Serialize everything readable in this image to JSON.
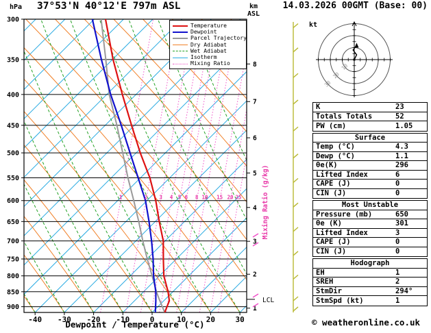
{
  "header": {
    "station": "37°53'N 40°12'E 797m ASL",
    "datetime": "14.03.2026 00GMT (Base: 00)"
  },
  "axes": {
    "pressure_unit": "hPa",
    "km_unit": "km",
    "asl_unit": "ASL",
    "xlabel": "Dewpoint / Temperature (°C)",
    "mixing_label": "Mixing Ratio (g/kg)",
    "lcl_label": "LCL"
  },
  "legend": {
    "items": [
      {
        "label": "Temperature",
        "color": "#dd1111",
        "style": "solid",
        "weight": 2
      },
      {
        "label": "Dewpoint",
        "color": "#1111cc",
        "style": "solid",
        "weight": 2
      },
      {
        "label": "Parcel Trajectory",
        "color": "#999999",
        "style": "solid",
        "weight": 2
      },
      {
        "label": "Dry Adiabat",
        "color": "#f08028",
        "style": "solid",
        "weight": 1
      },
      {
        "label": "Wet Adiabat",
        "color": "#22a022",
        "style": "dashed",
        "weight": 1
      },
      {
        "label": "Isotherm",
        "color": "#29abe2",
        "style": "solid",
        "weight": 1
      },
      {
        "label": "Mixing Ratio",
        "color": "#f050c8",
        "style": "dotted",
        "weight": 1
      }
    ]
  },
  "hodograph": {
    "unit": "kt",
    "rings": [
      10,
      20,
      30
    ],
    "trace": [
      [
        0,
        0
      ],
      [
        2,
        4
      ],
      [
        -1,
        8
      ],
      [
        2,
        12
      ]
    ]
  },
  "indices": {
    "sections": [
      {
        "rows": [
          {
            "label": "K",
            "value": "23"
          },
          {
            "label": "Totals Totals",
            "value": "52"
          },
          {
            "label": "PW (cm)",
            "value": "1.05"
          }
        ]
      },
      {
        "title": "Surface",
        "rows": [
          {
            "label": "Temp (°C)",
            "value": "4.3"
          },
          {
            "label": "Dewp (°C)",
            "value": "1.1"
          },
          {
            "label": "θe(K)",
            "value": "296"
          },
          {
            "label": "Lifted Index",
            "value": "6"
          },
          {
            "label": "CAPE (J)",
            "value": "0"
          },
          {
            "label": "CIN (J)",
            "value": "0"
          }
        ]
      },
      {
        "title": "Most Unstable",
        "rows": [
          {
            "label": "Pressure (mb)",
            "value": "650"
          },
          {
            "label": "θe (K)",
            "value": "301"
          },
          {
            "label": "Lifted Index",
            "value": "3"
          },
          {
            "label": "CAPE (J)",
            "value": "0"
          },
          {
            "label": "CIN (J)",
            "value": "0"
          }
        ]
      },
      {
        "title": "Hodograph",
        "rows": [
          {
            "label": "EH",
            "value": "1"
          },
          {
            "label": "SREH",
            "value": "2"
          },
          {
            "label": "StmDir",
            "value": "294°"
          },
          {
            "label": "StmSpd (kt)",
            "value": "1"
          }
        ]
      }
    ]
  },
  "footer": {
    "text": "© weatheronline.co.uk"
  },
  "chart_data": {
    "type": "skewt_sounding",
    "title": "37°53'N 40°12'E 797m ASL",
    "datetime": "14.03.2026 00GMT (Base: 00)",
    "pressure_axis": {
      "ticks": [
        300,
        350,
        400,
        450,
        500,
        550,
        600,
        650,
        700,
        750,
        800,
        850,
        900
      ],
      "top_p": 300,
      "bottom_p": 920
    },
    "temp_axis": {
      "ticks": [
        -40,
        -30,
        -20,
        -10,
        0,
        10,
        20,
        30
      ]
    },
    "km_axis": {
      "ticks": [
        {
          "km": 8,
          "p": 356
        },
        {
          "km": 7,
          "p": 411
        },
        {
          "km": 6,
          "p": 472
        },
        {
          "km": 5,
          "p": 540
        },
        {
          "km": 4,
          "p": 616
        },
        {
          "km": 3,
          "p": 701
        },
        {
          "km": 2,
          "p": 795
        },
        {
          "km": 1,
          "p": 905
        }
      ]
    },
    "mixing_ratio": {
      "values": [
        1,
        2,
        3,
        4,
        5,
        6,
        8,
        10,
        15,
        20,
        25
      ],
      "label_pressure": 600
    },
    "lcl_pressure": 875,
    "wind_barb_pressures": [
      310,
      340,
      375,
      415,
      460,
      510,
      560,
      615,
      675,
      740,
      810,
      880,
      915
    ],
    "series": [
      {
        "name": "Temperature",
        "color": "#dd1111",
        "width": 2.2,
        "points": [
          [
            920,
            4.3
          ],
          [
            880,
            4.6
          ],
          [
            850,
            3.2
          ],
          [
            800,
            0.0
          ],
          [
            750,
            -2.0
          ],
          [
            700,
            -4.0
          ],
          [
            650,
            -7.5
          ],
          [
            600,
            -11.0
          ],
          [
            550,
            -15.5
          ],
          [
            500,
            -21.5
          ],
          [
            450,
            -27.5
          ],
          [
            400,
            -34.0
          ],
          [
            350,
            -41.0
          ],
          [
            300,
            -48.0
          ]
        ]
      },
      {
        "name": "Dewpoint",
        "color": "#1111cc",
        "width": 2.2,
        "points": [
          [
            920,
            1.1
          ],
          [
            880,
            0.0
          ],
          [
            850,
            -1.0
          ],
          [
            800,
            -3.5
          ],
          [
            750,
            -5.5
          ],
          [
            700,
            -8.0
          ],
          [
            650,
            -11.0
          ],
          [
            600,
            -14.5
          ],
          [
            550,
            -19.5
          ],
          [
            500,
            -25.0
          ],
          [
            450,
            -31.0
          ],
          [
            400,
            -38.0
          ],
          [
            350,
            -45.0
          ],
          [
            300,
            -52.5
          ]
        ]
      },
      {
        "name": "Parcel Trajectory",
        "color": "#999999",
        "width": 2,
        "points": [
          [
            920,
            4.3
          ],
          [
            875,
            1.0
          ],
          [
            850,
            -0.8
          ],
          [
            800,
            -4.0
          ],
          [
            750,
            -7.5
          ],
          [
            700,
            -11.0
          ],
          [
            650,
            -14.5
          ],
          [
            600,
            -18.5
          ],
          [
            550,
            -23.0
          ],
          [
            500,
            -27.5
          ],
          [
            450,
            -32.5
          ],
          [
            400,
            -38.5
          ],
          [
            350,
            -43.5
          ],
          [
            300,
            -49.5
          ]
        ]
      }
    ]
  }
}
